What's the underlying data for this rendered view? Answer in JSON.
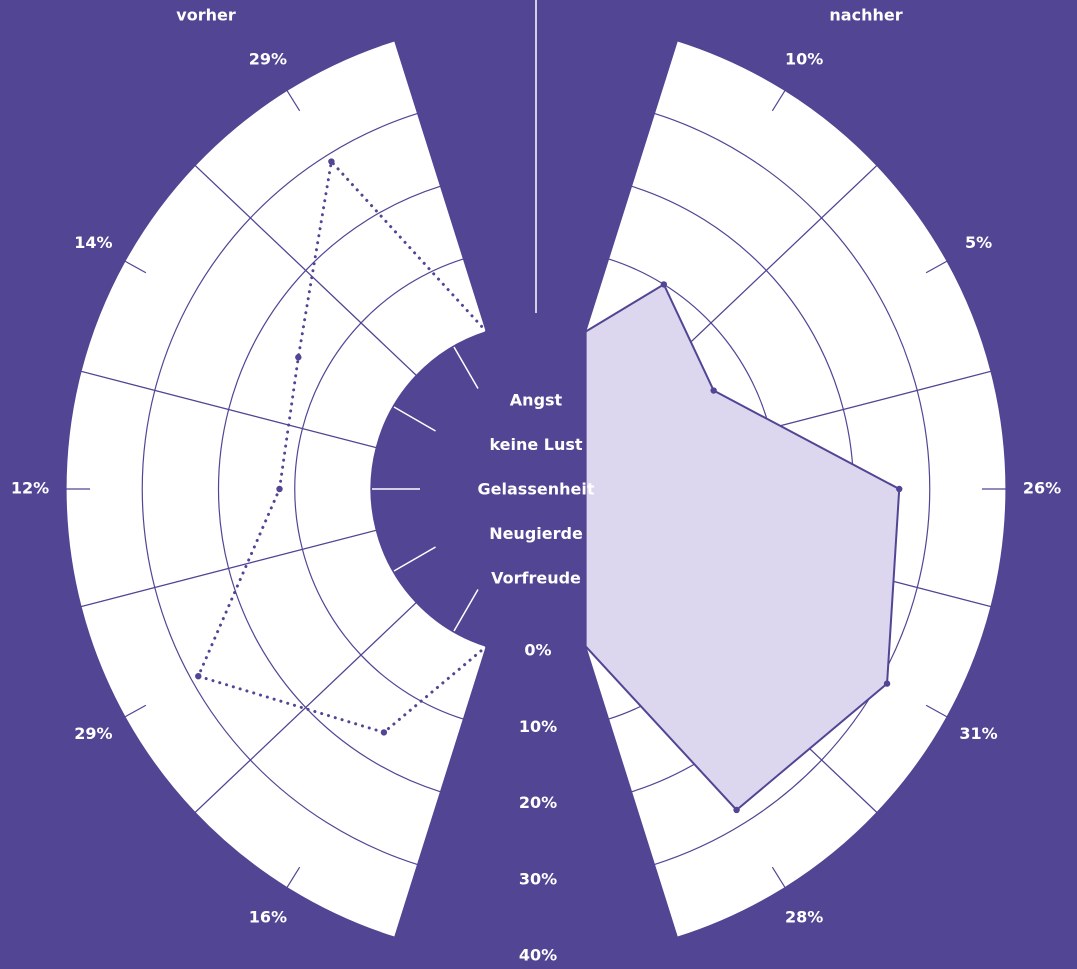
{
  "chart_data": {
    "type": "radial-radar",
    "categories": [
      "Angst",
      "keine Lust",
      "Gelassenheit",
      "Neugierde",
      "Vorfreude"
    ],
    "series": [
      {
        "name": "vorher",
        "color": "#ffffff",
        "values": [
          29,
          14,
          12,
          29,
          16
        ],
        "value_labels": [
          "29%",
          "14%",
          "12%",
          "29%",
          "16%"
        ]
      },
      {
        "name": "nachher",
        "color": "#dcd6ee",
        "values": [
          10,
          5,
          26,
          31,
          28
        ],
        "value_labels": [
          "10%",
          "5%",
          "26%",
          "31%",
          "28%"
        ]
      }
    ],
    "rlim": [
      0,
      40
    ],
    "rticks": [
      {
        "value": 0,
        "label": "0%"
      },
      {
        "value": 10,
        "label": "10%"
      },
      {
        "value": 20,
        "label": "20%"
      },
      {
        "value": 30,
        "label": "30%"
      },
      {
        "value": 40,
        "label": "40%"
      }
    ]
  }
}
